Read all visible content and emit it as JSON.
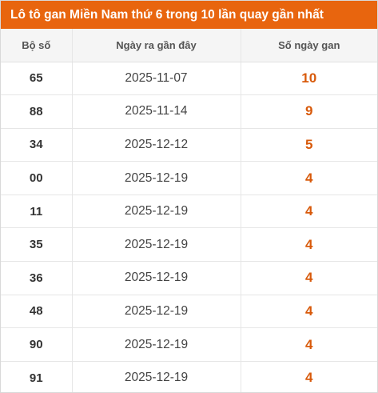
{
  "title": "Lô tô gan Miền Nam thứ 6 trong 10 lần quay gần nhất",
  "columns": {
    "number": "Bộ số",
    "last_date": "Ngày ra gần đây",
    "days_gap": "Số ngày gan"
  },
  "rows": [
    {
      "number": "65",
      "last_date": "2025-11-07",
      "days_gap": "10"
    },
    {
      "number": "88",
      "last_date": "2025-11-14",
      "days_gap": "9"
    },
    {
      "number": "34",
      "last_date": "2025-12-12",
      "days_gap": "5"
    },
    {
      "number": "00",
      "last_date": "2025-12-19",
      "days_gap": "4"
    },
    {
      "number": "11",
      "last_date": "2025-12-19",
      "days_gap": "4"
    },
    {
      "number": "35",
      "last_date": "2025-12-19",
      "days_gap": "4"
    },
    {
      "number": "36",
      "last_date": "2025-12-19",
      "days_gap": "4"
    },
    {
      "number": "48",
      "last_date": "2025-12-19",
      "days_gap": "4"
    },
    {
      "number": "90",
      "last_date": "2025-12-19",
      "days_gap": "4"
    },
    {
      "number": "91",
      "last_date": "2025-12-19",
      "days_gap": "4"
    }
  ],
  "colors": {
    "header_bar": "#e8650e",
    "days_text": "#d85a0b"
  }
}
